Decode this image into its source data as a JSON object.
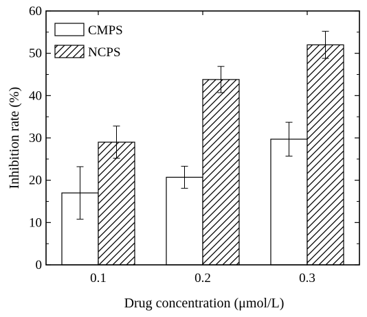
{
  "chart_data": {
    "type": "bar",
    "categories": [
      "0.1",
      "0.2",
      "0.3"
    ],
    "series": [
      {
        "name": "CMPS",
        "values": [
          17.0,
          20.7,
          29.7
        ],
        "errors": [
          6.2,
          2.6,
          4.0
        ],
        "fill": "#ffffff",
        "pattern": "none"
      },
      {
        "name": "NCPS",
        "values": [
          29.0,
          43.8,
          52.0
        ],
        "errors": [
          3.8,
          3.1,
          3.2
        ],
        "fill": "#ffffff",
        "pattern": "diagonal-hatch"
      }
    ],
    "title": "",
    "xlabel": "Drug concentration (μmol/L)",
    "ylabel": "Inhibition rate (%)",
    "ylim": [
      0,
      60
    ],
    "yticks": [
      "0",
      "10",
      "20",
      "30",
      "40",
      "50",
      "60"
    ],
    "legend_position": "top-left",
    "grid": false,
    "colors": {
      "stroke": "#000000",
      "background": "#ffffff"
    }
  }
}
